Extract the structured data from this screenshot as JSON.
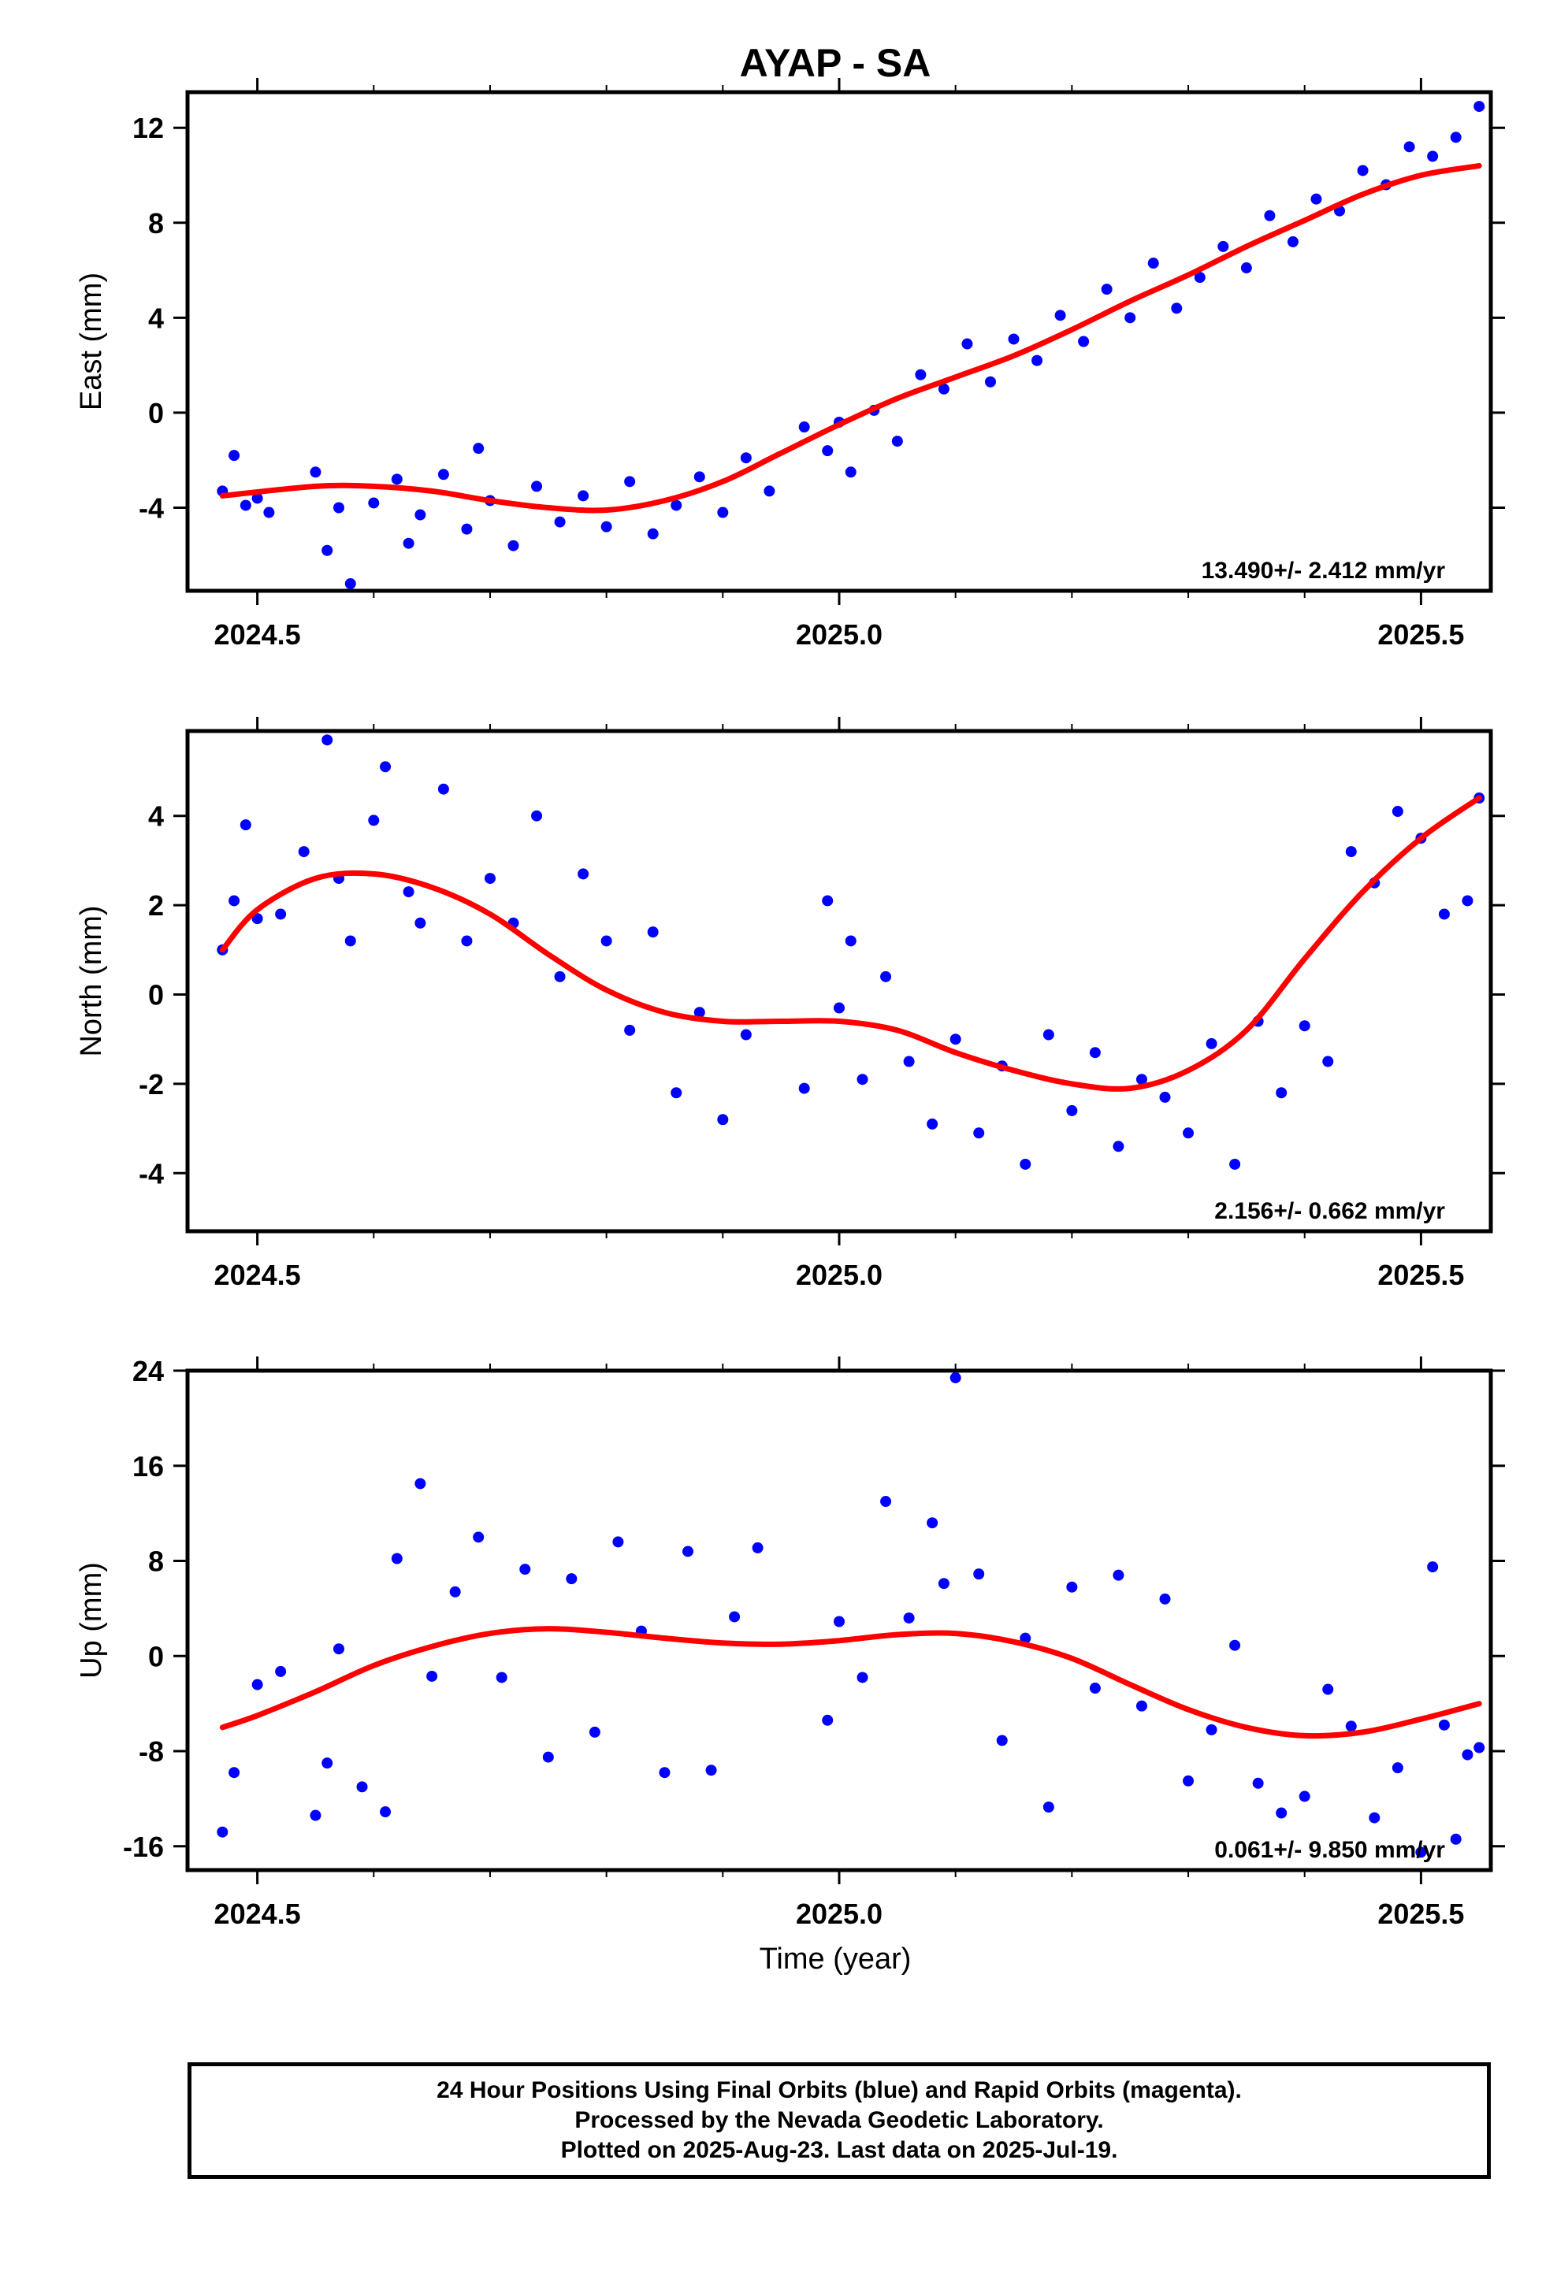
{
  "title": "AYAP - SA",
  "xlabel": "Time (year)",
  "footer": [
    "24 Hour Positions Using Final Orbits (blue) and Rapid Orbits (magenta).",
    "Processed by the Nevada Geodetic Laboratory.",
    "Plotted on 2025-Aug-23. Last data on 2025-Jul-19."
  ],
  "colors": {
    "points": "#0000ff",
    "fit": "#ff0000",
    "frame": "#000000"
  },
  "chart_data": [
    {
      "type": "scatter",
      "title": "AYAP - SA",
      "ylabel": "East (mm)",
      "xlabel": "",
      "rate_label": "13.490+/- 2.412 mm/yr",
      "xlim": [
        2024.44,
        2025.56
      ],
      "ylim": [
        -7.5,
        13.5
      ],
      "xticks": [
        2024.5,
        2025.0,
        2025.5
      ],
      "xtick_labels": [
        "2024.5",
        "2025.0",
        "2025.5"
      ],
      "yticks": [
        12,
        8,
        4,
        0,
        -4
      ],
      "ytick_labels": [
        "12",
        "8",
        "4",
        "0",
        "-4"
      ],
      "fit": {
        "name": "fit",
        "x": [
          2024.47,
          2024.55,
          2024.6,
          2024.65,
          2024.7,
          2024.75,
          2024.8,
          2024.85,
          2024.9,
          2024.95,
          2025.0,
          2025.05,
          2025.1,
          2025.15,
          2025.2,
          2025.25,
          2025.3,
          2025.35,
          2025.4,
          2025.45,
          2025.5,
          2025.55
        ],
        "y": [
          -3.5,
          -3.1,
          -3.1,
          -3.3,
          -3.7,
          -4.0,
          -4.1,
          -3.7,
          -2.9,
          -1.7,
          -0.5,
          0.6,
          1.5,
          2.4,
          3.5,
          4.7,
          5.8,
          7.0,
          8.1,
          9.2,
          10.0,
          10.4
        ]
      },
      "points": {
        "name": "Final Orbits",
        "x": [
          2024.47,
          2024.48,
          2024.49,
          2024.5,
          2024.51,
          2024.55,
          2024.56,
          2024.57,
          2024.58,
          2024.6,
          2024.62,
          2024.63,
          2024.64,
          2024.66,
          2024.68,
          2024.69,
          2024.7,
          2024.72,
          2024.74,
          2024.76,
          2024.78,
          2024.8,
          2024.82,
          2024.84,
          2024.86,
          2024.88,
          2024.9,
          2024.92,
          2024.94,
          2024.97,
          2024.99,
          2025.0,
          2025.01,
          2025.03,
          2025.05,
          2025.07,
          2025.09,
          2025.11,
          2025.13,
          2025.15,
          2025.17,
          2025.19,
          2025.21,
          2025.23,
          2025.25,
          2025.27,
          2025.29,
          2025.31,
          2025.33,
          2025.35,
          2025.37,
          2025.39,
          2025.41,
          2025.43,
          2025.45,
          2025.47,
          2025.49,
          2025.51,
          2025.53,
          2025.55
        ],
        "y": [
          -3.3,
          -1.8,
          -3.9,
          -3.6,
          -4.2,
          -2.5,
          -5.8,
          -4.0,
          -7.2,
          -3.8,
          -2.8,
          -5.5,
          -4.3,
          -2.6,
          -4.9,
          -1.5,
          -3.7,
          -5.6,
          -3.1,
          -4.6,
          -3.5,
          -4.8,
          -2.9,
          -5.1,
          -3.9,
          -2.7,
          -4.2,
          -1.9,
          -3.3,
          -0.6,
          -1.6,
          -0.4,
          -2.5,
          0.1,
          -1.2,
          1.6,
          1.0,
          2.9,
          1.3,
          3.1,
          2.2,
          4.1,
          3.0,
          5.2,
          4.0,
          6.3,
          4.4,
          5.7,
          7.0,
          6.1,
          8.3,
          7.2,
          9.0,
          8.5,
          10.2,
          9.6,
          11.2,
          10.8,
          11.6,
          12.9
        ]
      }
    },
    {
      "type": "scatter",
      "title": "",
      "ylabel": "North (mm)",
      "xlabel": "",
      "rate_label": "2.156+/- 0.662 mm/yr",
      "xlim": [
        2024.44,
        2025.56
      ],
      "ylim": [
        -5.3,
        5.9
      ],
      "xticks": [
        2024.5,
        2025.0,
        2025.5
      ],
      "xtick_labels": [
        "2024.5",
        "2025.0",
        "2025.5"
      ],
      "yticks": [
        4,
        2,
        0,
        -2,
        -4
      ],
      "ytick_labels": [
        "4",
        "2",
        "0",
        "-2",
        "-4"
      ],
      "fit": {
        "name": "fit",
        "x": [
          2024.47,
          2024.5,
          2024.55,
          2024.6,
          2024.65,
          2024.7,
          2024.75,
          2024.8,
          2024.85,
          2024.9,
          2024.95,
          2025.0,
          2025.05,
          2025.1,
          2025.15,
          2025.2,
          2025.25,
          2025.3,
          2025.35,
          2025.4,
          2025.45,
          2025.5,
          2025.55
        ],
        "y": [
          1.0,
          1.9,
          2.6,
          2.7,
          2.4,
          1.8,
          0.9,
          0.1,
          -0.4,
          -0.6,
          -0.6,
          -0.6,
          -0.8,
          -1.3,
          -1.7,
          -2.0,
          -2.1,
          -1.7,
          -0.8,
          0.8,
          2.3,
          3.5,
          4.4
        ]
      },
      "points": {
        "name": "Final Orbits",
        "x": [
          2024.47,
          2024.48,
          2024.49,
          2024.5,
          2024.52,
          2024.54,
          2024.56,
          2024.57,
          2024.58,
          2024.6,
          2024.61,
          2024.63,
          2024.64,
          2024.66,
          2024.68,
          2024.7,
          2024.72,
          2024.74,
          2024.76,
          2024.78,
          2024.8,
          2024.82,
          2024.84,
          2024.86,
          2024.88,
          2024.9,
          2024.92,
          2024.97,
          2024.99,
          2025.0,
          2025.01,
          2025.02,
          2025.04,
          2025.06,
          2025.08,
          2025.1,
          2025.12,
          2025.14,
          2025.16,
          2025.18,
          2025.2,
          2025.22,
          2025.24,
          2025.26,
          2025.28,
          2025.3,
          2025.32,
          2025.34,
          2025.36,
          2025.38,
          2025.4,
          2025.42,
          2025.44,
          2025.46,
          2025.48,
          2025.5,
          2025.52,
          2025.54,
          2025.55
        ],
        "y": [
          1.0,
          2.1,
          3.8,
          1.7,
          1.8,
          3.2,
          5.7,
          2.6,
          1.2,
          3.9,
          5.1,
          2.3,
          1.6,
          4.6,
          1.2,
          2.6,
          1.6,
          4.0,
          0.4,
          2.7,
          1.2,
          -0.8,
          1.4,
          -2.2,
          -0.4,
          -2.8,
          -0.9,
          -2.1,
          2.1,
          -0.3,
          1.2,
          -1.9,
          0.4,
          -1.5,
          -2.9,
          -1.0,
          -3.1,
          -1.6,
          -3.8,
          -0.9,
          -2.6,
          -1.3,
          -3.4,
          -1.9,
          -2.3,
          -3.1,
          -1.1,
          -3.8,
          -0.6,
          -2.2,
          -0.7,
          -1.5,
          3.2,
          2.5,
          4.1,
          3.5,
          1.8,
          2.1,
          4.4
        ]
      }
    },
    {
      "type": "scatter",
      "title": "",
      "ylabel": "Up (mm)",
      "xlabel": "Time (year)",
      "rate_label": "0.061+/- 9.850 mm/yr",
      "xlim": [
        2024.44,
        2025.56
      ],
      "ylim": [
        -18,
        24
      ],
      "xticks": [
        2024.5,
        2025.0,
        2025.5
      ],
      "xtick_labels": [
        "2024.5",
        "2025.0",
        "2025.5"
      ],
      "yticks": [
        24,
        16,
        8,
        0,
        -8,
        -16
      ],
      "ytick_labels": [
        "24",
        "16",
        "8",
        "0",
        "-8",
        "-16"
      ],
      "fit": {
        "name": "fit",
        "x": [
          2024.47,
          2024.5,
          2024.55,
          2024.6,
          2024.65,
          2024.7,
          2024.75,
          2024.8,
          2024.85,
          2024.9,
          2024.95,
          2025.0,
          2025.05,
          2025.1,
          2025.15,
          2025.2,
          2025.25,
          2025.3,
          2025.35,
          2025.4,
          2025.45,
          2025.5,
          2025.55
        ],
        "y": [
          -6.0,
          -5.0,
          -3.0,
          -0.8,
          0.8,
          1.9,
          2.3,
          2.0,
          1.5,
          1.1,
          1.0,
          1.3,
          1.8,
          1.9,
          1.2,
          -0.2,
          -2.4,
          -4.5,
          -6.0,
          -6.7,
          -6.4,
          -5.3,
          -4.0
        ]
      },
      "points": {
        "name": "Final Orbits",
        "x": [
          2024.47,
          2024.48,
          2024.5,
          2024.52,
          2024.55,
          2024.56,
          2024.57,
          2024.59,
          2024.61,
          2024.62,
          2024.64,
          2024.65,
          2024.67,
          2024.69,
          2024.71,
          2024.73,
          2024.75,
          2024.77,
          2024.79,
          2024.81,
          2024.83,
          2024.85,
          2024.87,
          2024.89,
          2024.91,
          2024.93,
          2024.99,
          2025.0,
          2025.02,
          2025.04,
          2025.06,
          2025.08,
          2025.09,
          2025.1,
          2025.12,
          2025.14,
          2025.16,
          2025.18,
          2025.2,
          2025.22,
          2025.24,
          2025.26,
          2025.28,
          2025.3,
          2025.32,
          2025.34,
          2025.36,
          2025.38,
          2025.4,
          2025.42,
          2025.44,
          2025.46,
          2025.48,
          2025.5,
          2025.51,
          2025.52,
          2025.53,
          2025.54,
          2025.55
        ],
        "y": [
          -14.8,
          -9.8,
          -2.4,
          -1.3,
          -13.4,
          -9.0,
          0.6,
          -11.0,
          -13.1,
          8.2,
          14.5,
          -1.7,
          5.4,
          10.0,
          -1.8,
          7.3,
          -8.5,
          6.5,
          -6.4,
          9.6,
          2.1,
          -9.8,
          8.8,
          -9.6,
          3.3,
          9.1,
          -5.4,
          2.9,
          -1.8,
          13.0,
          3.2,
          11.2,
          6.1,
          23.4,
          6.9,
          -7.1,
          1.5,
          -12.7,
          5.8,
          -2.7,
          6.8,
          -4.2,
          4.8,
          -10.5,
          -6.2,
          0.9,
          -10.7,
          -13.2,
          -11.8,
          -2.8,
          -5.9,
          -13.6,
          -9.4,
          -16.5,
          7.5,
          -5.8,
          -15.4,
          -8.3,
          -7.7
        ]
      }
    }
  ]
}
